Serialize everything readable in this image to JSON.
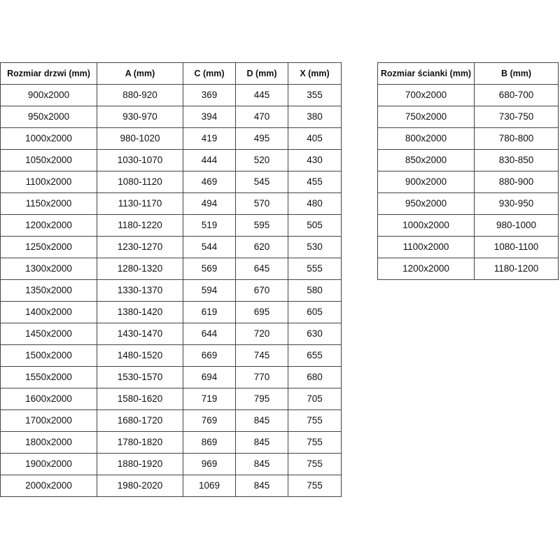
{
  "doors_table": {
    "headers": [
      "Rozmiar drzwi (mm)",
      "A (mm)",
      "C (mm)",
      "D (mm)",
      "X (mm)"
    ],
    "rows": [
      [
        "900x2000",
        "880-920",
        "369",
        "445",
        "355"
      ],
      [
        "950x2000",
        "930-970",
        "394",
        "470",
        "380"
      ],
      [
        "1000x2000",
        "980-1020",
        "419",
        "495",
        "405"
      ],
      [
        "1050x2000",
        "1030-1070",
        "444",
        "520",
        "430"
      ],
      [
        "1100x2000",
        "1080-1120",
        "469",
        "545",
        "455"
      ],
      [
        "1150x2000",
        "1130-1170",
        "494",
        "570",
        "480"
      ],
      [
        "1200x2000",
        "1180-1220",
        "519",
        "595",
        "505"
      ],
      [
        "1250x2000",
        "1230-1270",
        "544",
        "620",
        "530"
      ],
      [
        "1300x2000",
        "1280-1320",
        "569",
        "645",
        "555"
      ],
      [
        "1350x2000",
        "1330-1370",
        "594",
        "670",
        "580"
      ],
      [
        "1400x2000",
        "1380-1420",
        "619",
        "695",
        "605"
      ],
      [
        "1450x2000",
        "1430-1470",
        "644",
        "720",
        "630"
      ],
      [
        "1500x2000",
        "1480-1520",
        "669",
        "745",
        "655"
      ],
      [
        "1550x2000",
        "1530-1570",
        "694",
        "770",
        "680"
      ],
      [
        "1600x2000",
        "1580-1620",
        "719",
        "795",
        "705"
      ],
      [
        "1700x2000",
        "1680-1720",
        "769",
        "845",
        "755"
      ],
      [
        "1800x2000",
        "1780-1820",
        "869",
        "845",
        "755"
      ],
      [
        "1900x2000",
        "1880-1920",
        "969",
        "845",
        "755"
      ],
      [
        "2000x2000",
        "1980-2020",
        "1069",
        "845",
        "755"
      ]
    ]
  },
  "walls_table": {
    "headers": [
      "Rozmiar ścianki (mm)",
      "B (mm)"
    ],
    "rows": [
      [
        "700x2000",
        "680-700"
      ],
      [
        "750x2000",
        "730-750"
      ],
      [
        "800x2000",
        "780-800"
      ],
      [
        "850x2000",
        "830-850"
      ],
      [
        "900x2000",
        "880-900"
      ],
      [
        "950x2000",
        "930-950"
      ],
      [
        "1000x2000",
        "980-1000"
      ],
      [
        "1100x2000",
        "1080-1100"
      ],
      [
        "1200x2000",
        "1180-1200"
      ]
    ]
  }
}
